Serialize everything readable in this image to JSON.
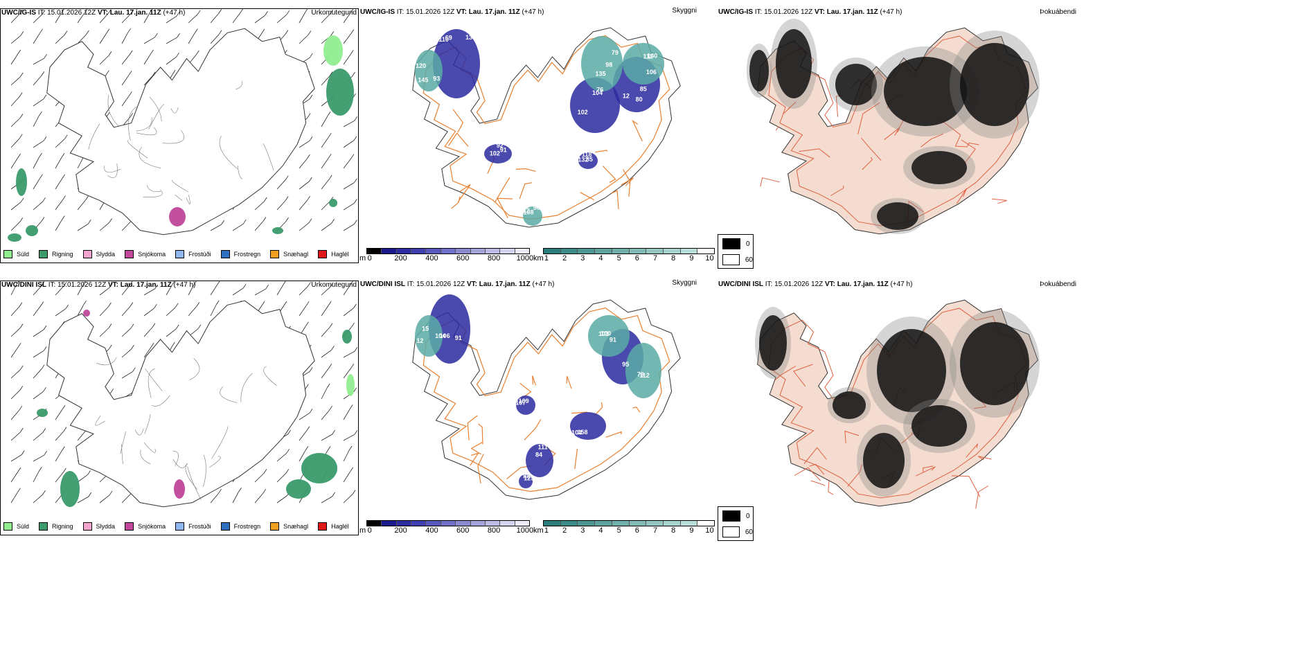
{
  "rows": [
    {
      "model": "UWC/IG-IS",
      "it_prefix": "IT:",
      "it_value": "15.01.2026 12Z",
      "vt_prefix": "VT:",
      "vt_value": "Lau. 17.jan. 11Z",
      "lead": "(+47 h)",
      "precip_label": "Úrkomutegund",
      "vis_label": "Skyggni",
      "fog_label": "Þokuábendi",
      "vis_numbers": [
        "69",
        "76",
        "80",
        "91",
        "85",
        "90",
        "79",
        "111",
        "145",
        "110",
        "102",
        "12",
        "92",
        "118",
        "12",
        "98",
        "106",
        "120",
        "13",
        "104",
        "85",
        "102",
        "132",
        "108",
        "135",
        "140",
        "93"
      ]
    },
    {
      "model": "UWC/DINI ISL",
      "it_prefix": "IT:",
      "it_value": "15.01.2026 12Z",
      "vt_prefix": "VT:",
      "vt_value": "Lau. 17.jan. 11Z",
      "lead": "(+47 h)",
      "precip_label": "Úrkomutegund",
      "vis_label": "Skyggni",
      "fog_label": "Þokuábendi",
      "vis_numbers": [
        "106",
        "95",
        "109",
        "158",
        "84",
        "125",
        "103",
        "112",
        "15",
        "91",
        "91",
        "107",
        "104",
        "111",
        "88",
        "100",
        "76",
        "12",
        "104"
      ]
    }
  ],
  "precip_legend": [
    {
      "label": "Súld",
      "color": "#90ee90"
    },
    {
      "label": "Rigning",
      "color": "#3a9a6a"
    },
    {
      "label": "Slydda",
      "color": "#f4a6d0"
    },
    {
      "label": "Snjókoma",
      "color": "#c0479a"
    },
    {
      "label": "Frostúði",
      "color": "#8fb8f0"
    },
    {
      "label": "Frostregn",
      "color": "#2f6fc0"
    },
    {
      "label": "Snæhagl",
      "color": "#f0a020"
    },
    {
      "label": "Haglél",
      "color": "#e01818"
    }
  ],
  "cloudbase_bar": {
    "unit": "m",
    "ticks": [
      "0",
      "200",
      "400",
      "600",
      "800",
      "1000"
    ],
    "colors": [
      "#000000",
      "#1a1a8c",
      "#2c2ca0",
      "#3f3fb0",
      "#5858bf",
      "#7070c8",
      "#8a8ad0",
      "#a4a4da",
      "#bcbce4",
      "#d4d4ee",
      "#ececf8"
    ]
  },
  "visibility_bar": {
    "unit": "km",
    "ticks": [
      "1",
      "2",
      "3",
      "4",
      "5",
      "6",
      "7",
      "8",
      "9",
      "10"
    ],
    "colors": [
      "#2a7f7a",
      "#3b8b86",
      "#4c9792",
      "#5ea39e",
      "#70afaa",
      "#82bbb6",
      "#94c7c2",
      "#a6d3ce",
      "#b8dfda",
      "#ffffff"
    ]
  },
  "fog_legend": [
    {
      "label": "0",
      "color": "#000000"
    },
    {
      "label": "60",
      "color": "#ffffff"
    }
  ]
}
